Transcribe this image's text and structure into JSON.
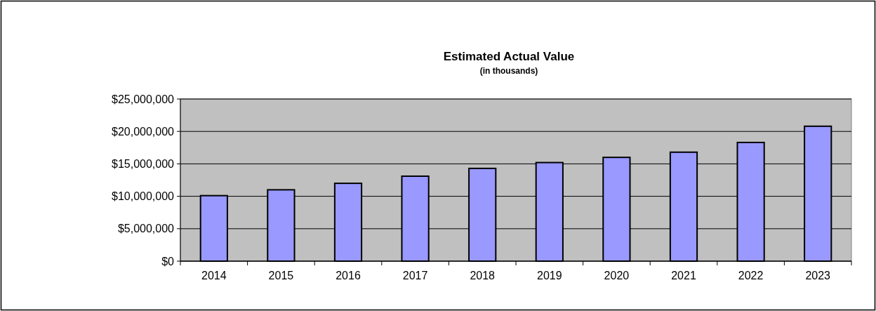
{
  "chart_data": {
    "type": "bar",
    "title": "Estimated Actual Value",
    "subtitle": "(in thousands)",
    "categories": [
      "2014",
      "2015",
      "2016",
      "2017",
      "2018",
      "2019",
      "2020",
      "2021",
      "2022",
      "2023"
    ],
    "values": [
      10100000,
      11000000,
      12000000,
      13100000,
      14300000,
      15200000,
      16000000,
      16800000,
      18300000,
      20800000
    ],
    "color": "#9999ff",
    "ylim": [
      0,
      25000000
    ],
    "yticks": [
      {
        "value": 0,
        "label": "$0"
      },
      {
        "value": 5000000,
        "label": "$5,000,000"
      },
      {
        "value": 10000000,
        "label": "$10,000,000"
      },
      {
        "value": 15000000,
        "label": "$15,000,000"
      },
      {
        "value": 20000000,
        "label": "$20,000,000"
      },
      {
        "value": 25000000,
        "label": "$25,000,000"
      }
    ],
    "grid": "y"
  }
}
